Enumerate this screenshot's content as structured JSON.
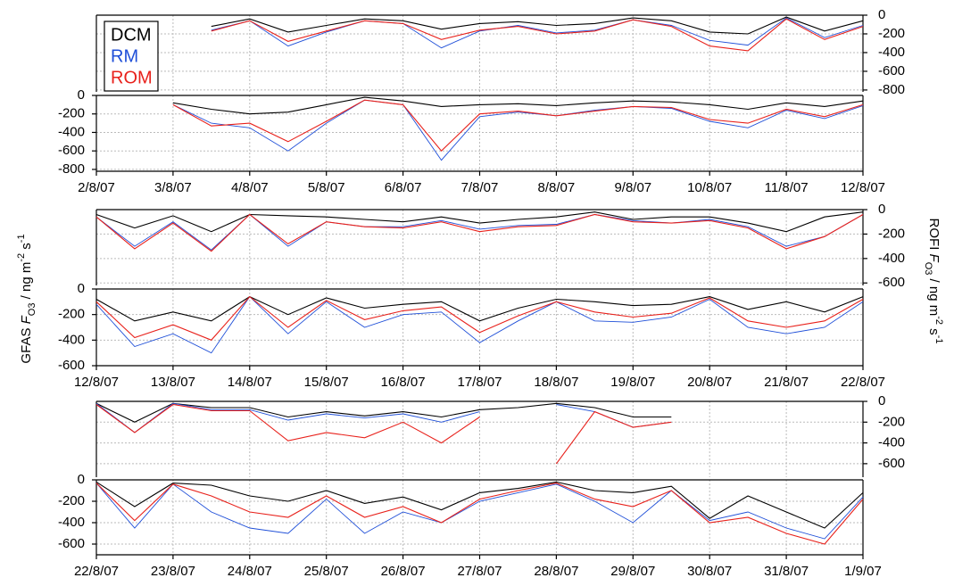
{
  "left_axis_label": [
    "GFAS ",
    "F",
    "O3",
    " / ng m",
    "-2",
    " s",
    "-1"
  ],
  "right_axis_label": [
    "ROFI ",
    "F",
    "O3",
    " / ng m",
    "-2",
    " s",
    "-1"
  ],
  "chart_data": [
    {
      "type": "line",
      "x": [
        2,
        2.5,
        3,
        3.5,
        4,
        4.5,
        5,
        5.5,
        6,
        6.5,
        7,
        7.5,
        8,
        8.5,
        9,
        9.5,
        10,
        10.5,
        11,
        11.5,
        12
      ],
      "xlim": [
        2,
        12
      ],
      "xticks": [
        2,
        3,
        4,
        5,
        6,
        7,
        8,
        9,
        10,
        11,
        12
      ],
      "y2lim": [
        -820,
        0
      ],
      "y2ticks": [
        0,
        -200,
        -400,
        -600,
        -800
      ],
      "grid": true,
      "legend": "top-left",
      "series": [
        {
          "name": "DCM",
          "color": "#000000",
          "axis": "y2",
          "values": [
            null,
            null,
            null,
            -120,
            -40,
            -180,
            -110,
            -40,
            -60,
            -150,
            -90,
            -70,
            -110,
            -90,
            -30,
            -60,
            -180,
            -200,
            -20,
            -170,
            -60
          ]
        },
        {
          "name": "RM",
          "color": "#1f4fd8",
          "axis": "y2",
          "values": [
            null,
            null,
            null,
            -160,
            -60,
            -330,
            -180,
            -60,
            -90,
            -350,
            -170,
            -110,
            -190,
            -160,
            -50,
            -110,
            -270,
            -320,
            -30,
            -240,
            -110
          ]
        },
        {
          "name": "ROM",
          "color": "#e8211b",
          "axis": "y2",
          "values": [
            null,
            null,
            null,
            -170,
            -60,
            -280,
            -170,
            -60,
            -90,
            -260,
            -160,
            -120,
            -200,
            -170,
            -50,
            -120,
            -330,
            -380,
            -40,
            -260,
            -120
          ]
        }
      ]
    },
    {
      "type": "line",
      "x": [
        2,
        2.5,
        3,
        3.5,
        4,
        4.5,
        5,
        5.5,
        6,
        6.5,
        7,
        7.5,
        8,
        8.5,
        9,
        9.5,
        10,
        10.5,
        11,
        11.5,
        12
      ],
      "xlim": [
        2,
        12
      ],
      "xticks": [
        {
          "value": 2,
          "label": "2/8/07"
        },
        {
          "value": 3,
          "label": "3/8/07"
        },
        {
          "value": 4,
          "label": "4/8/07"
        },
        {
          "value": 5,
          "label": "5/8/07"
        },
        {
          "value": 6,
          "label": "6/8/07"
        },
        {
          "value": 7,
          "label": "7/8/07"
        },
        {
          "value": 8,
          "label": "8/8/07"
        },
        {
          "value": 9,
          "label": "9/8/07"
        },
        {
          "value": 10,
          "label": "10/8/07"
        },
        {
          "value": 11,
          "label": "11/8/07"
        },
        {
          "value": 12,
          "label": "12/8/07"
        }
      ],
      "ylim": [
        -820,
        0
      ],
      "yticks": [
        0,
        -200,
        -400,
        -600,
        -800
      ],
      "grid": true,
      "series": [
        {
          "name": "DCM",
          "color": "#000000",
          "values": [
            null,
            null,
            -80,
            -150,
            -200,
            -180,
            -100,
            -20,
            -60,
            -120,
            -100,
            -90,
            -110,
            -80,
            -60,
            -70,
            -100,
            -150,
            -80,
            -120,
            -60
          ]
        },
        {
          "name": "RM",
          "color": "#1f4fd8",
          "values": [
            null,
            null,
            -100,
            -300,
            -350,
            -600,
            -300,
            -50,
            -100,
            -700,
            -230,
            -180,
            -220,
            -160,
            -120,
            -140,
            -280,
            -350,
            -160,
            -250,
            -110
          ]
        },
        {
          "name": "ROM",
          "color": "#e8211b",
          "values": [
            null,
            null,
            -100,
            -330,
            -300,
            -500,
            -280,
            -50,
            -100,
            -600,
            -200,
            -170,
            -220,
            -170,
            -120,
            -130,
            -260,
            -300,
            -150,
            -230,
            -100
          ]
        }
      ]
    },
    {
      "type": "line",
      "x": [
        12,
        12.5,
        13,
        13.5,
        14,
        14.5,
        15,
        15.5,
        16,
        16.5,
        17,
        17.5,
        18,
        18.5,
        19,
        19.5,
        20,
        20.5,
        21,
        21.5,
        22
      ],
      "xlim": [
        12,
        22
      ],
      "xticks": [
        12,
        13,
        14,
        15,
        16,
        17,
        18,
        19,
        20,
        21,
        22
      ],
      "y2lim": [
        -620,
        0
      ],
      "y2ticks": [
        0,
        -200,
        -400,
        -600
      ],
      "grid": true,
      "series": [
        {
          "name": "DCM",
          "color": "#000000",
          "axis": "y2",
          "values": [
            -40,
            -150,
            -50,
            -180,
            -40,
            -50,
            -60,
            -80,
            -100,
            -60,
            -110,
            -80,
            -60,
            -20,
            -80,
            -60,
            -60,
            -110,
            -180,
            -60,
            -20
          ]
        },
        {
          "name": "RM",
          "color": "#1f4fd8",
          "axis": "y2",
          "values": [
            -60,
            -300,
            -100,
            -330,
            -40,
            -300,
            -100,
            -140,
            -140,
            -90,
            -160,
            -130,
            -120,
            -40,
            -90,
            -110,
            -80,
            -140,
            -300,
            -220,
            -40
          ]
        },
        {
          "name": "ROM",
          "color": "#e8211b",
          "axis": "y2",
          "values": [
            -60,
            -320,
            -110,
            -340,
            -40,
            -280,
            -100,
            -140,
            -150,
            -100,
            -180,
            -140,
            -130,
            -40,
            -100,
            -110,
            -90,
            -150,
            -320,
            -220,
            -40
          ]
        }
      ]
    },
    {
      "type": "line",
      "x": [
        12,
        12.5,
        13,
        13.5,
        14,
        14.5,
        15,
        15.5,
        16,
        16.5,
        17,
        17.5,
        18,
        18.5,
        19,
        19.5,
        20,
        20.5,
        21,
        21.5,
        22
      ],
      "xlim": [
        12,
        22
      ],
      "xticks": [
        {
          "value": 12,
          "label": "12/8/07"
        },
        {
          "value": 13,
          "label": "13/8/07"
        },
        {
          "value": 14,
          "label": "14/8/07"
        },
        {
          "value": 15,
          "label": "15/8/07"
        },
        {
          "value": 16,
          "label": "16/8/07"
        },
        {
          "value": 17,
          "label": "17/8/07"
        },
        {
          "value": 18,
          "label": "18/8/07"
        },
        {
          "value": 19,
          "label": "19/8/07"
        },
        {
          "value": 20,
          "label": "20/8/07"
        },
        {
          "value": 21,
          "label": "21/8/07"
        },
        {
          "value": 22,
          "label": "22/8/07"
        }
      ],
      "ylim": [
        -600,
        0
      ],
      "yticks": [
        0,
        -200,
        -400,
        -600
      ],
      "grid": true,
      "series": [
        {
          "name": "DCM",
          "color": "#000000",
          "values": [
            -80,
            -250,
            -180,
            -250,
            -60,
            -200,
            -70,
            -150,
            -120,
            -100,
            -250,
            -150,
            -80,
            -100,
            -130,
            -120,
            -60,
            -160,
            -100,
            -180,
            -60
          ]
        },
        {
          "name": "RM",
          "color": "#1f4fd8",
          "values": [
            -120,
            -450,
            -350,
            -500,
            -60,
            -350,
            -100,
            -300,
            -200,
            -180,
            -420,
            -250,
            -100,
            -250,
            -260,
            -220,
            -80,
            -300,
            -350,
            -300,
            -100
          ]
        },
        {
          "name": "ROM",
          "color": "#e8211b",
          "values": [
            -100,
            -380,
            -280,
            -400,
            -60,
            -300,
            -90,
            -240,
            -170,
            -140,
            -340,
            -210,
            -100,
            -180,
            -220,
            -190,
            -70,
            -250,
            -300,
            -250,
            -80
          ]
        }
      ]
    },
    {
      "type": "line",
      "x": [
        22,
        22.5,
        23,
        23.5,
        24,
        24.5,
        25,
        25.5,
        26,
        26.5,
        27,
        27.5,
        28,
        28.5,
        29,
        29.5,
        30,
        30.5,
        31,
        31.5,
        32
      ],
      "xlim": [
        22,
        32
      ],
      "xticks": [
        22,
        23,
        24,
        25,
        26,
        27,
        28,
        29,
        30,
        31,
        32
      ],
      "y2lim": [
        -730,
        0
      ],
      "y2ticks": [
        0,
        -200,
        -400,
        -600
      ],
      "grid": true,
      "series": [
        {
          "name": "DCM",
          "color": "#000000",
          "axis": "y2",
          "values": [
            -20,
            -200,
            -20,
            -60,
            -60,
            -150,
            -100,
            -140,
            -100,
            -150,
            -80,
            -60,
            -20,
            -60,
            -150,
            -150,
            null,
            null,
            null,
            null,
            null
          ]
        },
        {
          "name": "RM",
          "color": "#1f4fd8",
          "axis": "y2",
          "values": [
            -20,
            -300,
            -20,
            -80,
            -80,
            -180,
            -120,
            -160,
            -120,
            -200,
            -100,
            null,
            -30,
            -100,
            -250,
            -200,
            null,
            null,
            null,
            null,
            null
          ]
        },
        {
          "name": "ROM",
          "color": "#e8211b",
          "axis": "y2",
          "values": [
            -30,
            -300,
            -30,
            -90,
            -90,
            -380,
            -300,
            -350,
            -200,
            -400,
            -150,
            null,
            -600,
            -100,
            -250,
            -200,
            null,
            null,
            null,
            null,
            null
          ]
        }
      ]
    },
    {
      "type": "line",
      "x": [
        22,
        22.5,
        23,
        23.5,
        24,
        24.5,
        25,
        25.5,
        26,
        26.5,
        27,
        27.5,
        28,
        28.5,
        29,
        29.5,
        30,
        30.5,
        31,
        31.5,
        32
      ],
      "xlim": [
        22,
        32
      ],
      "xticks": [
        {
          "value": 22,
          "label": "22/8/07"
        },
        {
          "value": 23,
          "label": "23/8/07"
        },
        {
          "value": 24,
          "label": "24/8/07"
        },
        {
          "value": 25,
          "label": "25/8/07"
        },
        {
          "value": 26,
          "label": "26/8/07"
        },
        {
          "value": 27,
          "label": "27/8/07"
        },
        {
          "value": 28,
          "label": "28/8/07"
        },
        {
          "value": 29,
          "label": "29/8/07"
        },
        {
          "value": 30,
          "label": "30/8/07"
        },
        {
          "value": 31,
          "label": "31/8/07"
        },
        {
          "value": 32,
          "label": "1/9/07"
        }
      ],
      "ylim": [
        -700,
        0
      ],
      "yticks": [
        0,
        -200,
        -400,
        -600
      ],
      "grid": true,
      "series": [
        {
          "name": "DCM",
          "color": "#000000",
          "values": [
            -20,
            -250,
            -30,
            -50,
            -150,
            -200,
            -100,
            -220,
            -160,
            -280,
            -120,
            -80,
            -20,
            -100,
            -120,
            -60,
            -360,
            -150,
            -300,
            -450,
            -120
          ]
        },
        {
          "name": "RM",
          "color": "#1f4fd8",
          "values": [
            -30,
            -450,
            -40,
            -300,
            -450,
            -500,
            -180,
            -500,
            -300,
            -400,
            -200,
            -120,
            -40,
            -200,
            -400,
            -100,
            -380,
            -300,
            -450,
            -550,
            -160
          ]
        },
        {
          "name": "ROM",
          "color": "#e8211b",
          "values": [
            -30,
            -380,
            -40,
            -150,
            -300,
            -350,
            -150,
            -350,
            -250,
            -400,
            -180,
            -100,
            -30,
            -180,
            -250,
            -100,
            -400,
            -350,
            -500,
            -600,
            -180
          ]
        }
      ]
    }
  ]
}
